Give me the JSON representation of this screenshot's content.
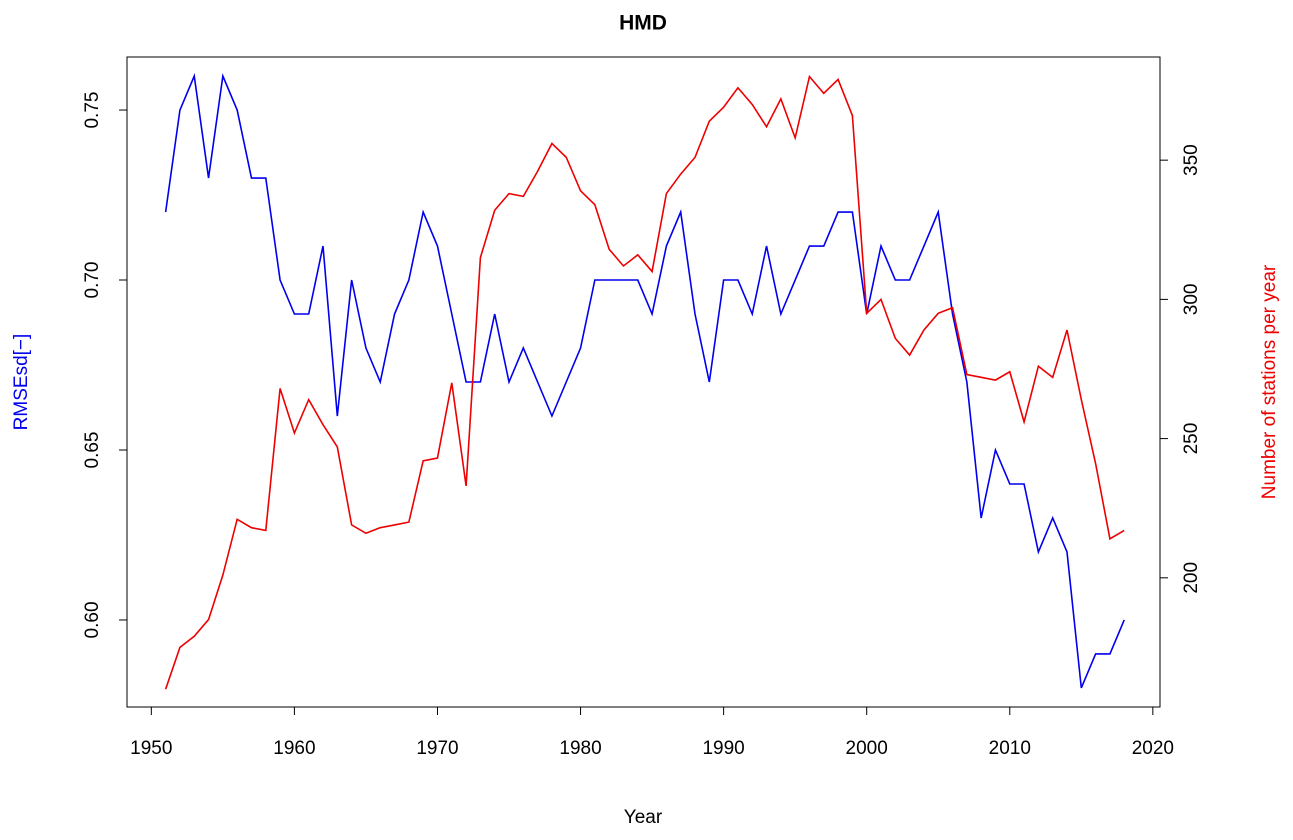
{
  "chart_data": {
    "type": "line",
    "title": "HMD",
    "xlabel": "Year",
    "ylabel": "RMSEsd[−]",
    "y2label": "Number of stations per year",
    "x": [
      1951,
      1952,
      1953,
      1954,
      1955,
      1956,
      1957,
      1958,
      1959,
      1960,
      1961,
      1962,
      1963,
      1964,
      1965,
      1966,
      1967,
      1968,
      1969,
      1970,
      1971,
      1972,
      1973,
      1974,
      1975,
      1976,
      1977,
      1978,
      1979,
      1980,
      1981,
      1982,
      1983,
      1984,
      1985,
      1986,
      1987,
      1988,
      1989,
      1990,
      1991,
      1992,
      1993,
      1994,
      1995,
      1996,
      1997,
      1998,
      1999,
      2000,
      2001,
      2002,
      2003,
      2004,
      2005,
      2006,
      2007,
      2008,
      2009,
      2010,
      2011,
      2012,
      2013,
      2014,
      2015,
      2016,
      2017,
      2018
    ],
    "series": [
      {
        "color": "#0000ee",
        "axis": "y",
        "values": [
          0.72,
          0.75,
          0.76,
          0.73,
          0.76,
          0.75,
          0.73,
          0.73,
          0.7,
          0.69,
          0.69,
          0.71,
          0.66,
          0.7,
          0.68,
          0.67,
          0.69,
          0.7,
          0.72,
          0.71,
          0.69,
          0.67,
          0.67,
          0.69,
          0.67,
          0.68,
          0.67,
          0.66,
          0.67,
          0.68,
          0.7,
          0.7,
          0.7,
          0.7,
          0.69,
          0.71,
          0.72,
          0.69,
          0.67,
          0.7,
          0.7,
          0.69,
          0.71,
          0.69,
          0.7,
          0.71,
          0.71,
          0.72,
          0.72,
          0.69,
          0.71,
          0.7,
          0.7,
          0.71,
          0.72,
          0.69,
          0.67,
          0.63,
          0.65,
          0.64,
          0.64,
          0.62,
          0.63,
          0.62,
          0.58,
          0.59,
          0.59,
          0.6
        ]
      },
      {
        "color": "#ee0000",
        "axis": "y2",
        "values": [
          160,
          175,
          179,
          185,
          201,
          221,
          218,
          217,
          268,
          252,
          264,
          255,
          247,
          219,
          216,
          218,
          219,
          220,
          242,
          243,
          270,
          233,
          315,
          332,
          338,
          337,
          346,
          356,
          351,
          339,
          334,
          318,
          312,
          316,
          310,
          338,
          345,
          351,
          364,
          369,
          376,
          370,
          362,
          372,
          358,
          380,
          374,
          379,
          366,
          295,
          300,
          286,
          280,
          289,
          295,
          297,
          273,
          272,
          271,
          274,
          256,
          276,
          272,
          289,
          264,
          241,
          214,
          217
        ]
      }
    ],
    "xlim": [
      1948.3,
      2020.5
    ],
    "xticks": [
      1950,
      1960,
      1970,
      1980,
      1990,
      2000,
      2010,
      2020
    ],
    "ylim": [
      0.5744,
      0.7656
    ],
    "yticks": [
      {
        "value": 0.6,
        "label": "0.60"
      },
      0.65,
      {
        "value": 0.7,
        "label": "0.70"
      },
      0.75
    ],
    "y2lim": [
      153.6,
      387.05
    ],
    "y2ticks": [
      200,
      250,
      300,
      350
    ]
  }
}
